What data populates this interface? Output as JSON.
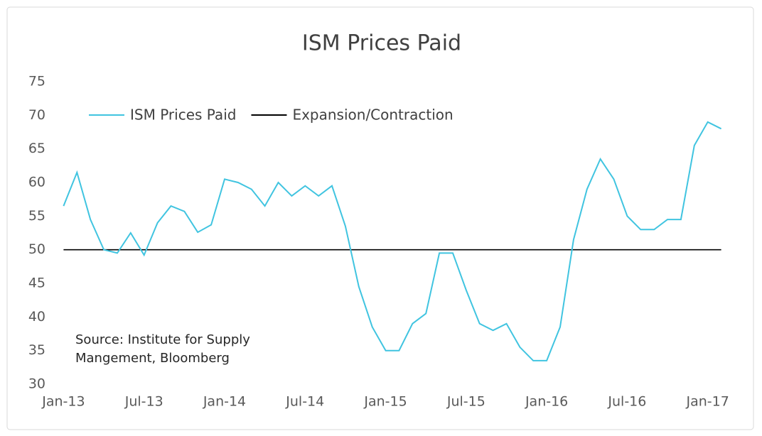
{
  "chart_data": {
    "type": "line",
    "title": "ISM Prices Paid",
    "annotation": [
      "Source: Institute for Supply",
      "Mangement, Bloomberg"
    ],
    "categories": [
      "Jan-13",
      null,
      null,
      null,
      null,
      null,
      "Jul-13",
      null,
      null,
      null,
      null,
      null,
      "Jan-14",
      null,
      null,
      null,
      null,
      null,
      "Jul-14",
      null,
      null,
      null,
      null,
      null,
      "Jan-15",
      null,
      null,
      null,
      null,
      null,
      "Jul-15",
      null,
      null,
      null,
      null,
      null,
      "Jan-16",
      null,
      null,
      null,
      null,
      null,
      "Jul-16",
      null,
      null,
      null,
      null,
      null,
      "Jan-17",
      null
    ],
    "series": [
      {
        "name": "ISM Prices Paid",
        "color": "#40c4e0",
        "values": [
          56.5,
          61.5,
          54.5,
          50.0,
          49.5,
          52.5,
          49.2,
          54.0,
          56.5,
          55.7,
          52.6,
          53.7,
          60.5,
          60.0,
          59.0,
          56.5,
          60.0,
          58.0,
          59.5,
          58.0,
          59.5,
          53.5,
          44.5,
          38.5,
          35.0,
          35.0,
          39.0,
          40.5,
          49.5,
          49.5,
          44.0,
          39.0,
          38.0,
          39.0,
          35.5,
          33.5,
          33.5,
          38.5,
          51.5,
          59.0,
          63.5,
          60.5,
          55.0,
          53.0,
          53.0,
          54.5,
          54.5,
          65.5,
          69.0,
          68.0
        ]
      },
      {
        "name": "Expansion/Contraction",
        "color": "#000000",
        "values": [
          50,
          50,
          50,
          50,
          50,
          50,
          50,
          50,
          50,
          50,
          50,
          50,
          50,
          50,
          50,
          50,
          50,
          50,
          50,
          50,
          50,
          50,
          50,
          50,
          50,
          50,
          50,
          50,
          50,
          50,
          50,
          50,
          50,
          50,
          50,
          50,
          50,
          50,
          50,
          50,
          50,
          50,
          50,
          50,
          50,
          50,
          50,
          50,
          50,
          50
        ]
      }
    ],
    "ylim": [
      30,
      75
    ],
    "yticks": [
      30,
      35,
      40,
      45,
      50,
      55,
      60,
      65,
      70,
      75
    ],
    "grid": false,
    "legend": "upper left"
  }
}
